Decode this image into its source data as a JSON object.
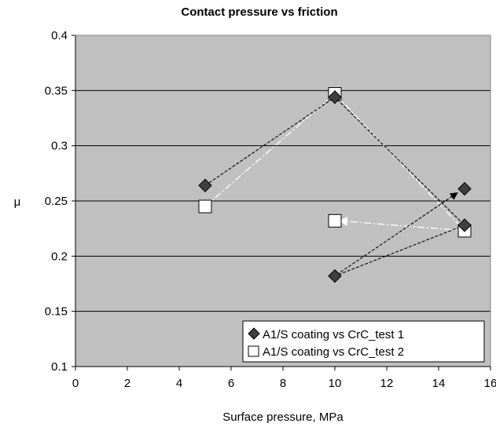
{
  "chart_data": {
    "type": "scatter",
    "title": "Contact pressure vs friction",
    "xlabel": "Surface pressure, MPa",
    "ylabel": "μ",
    "xlim": [
      0,
      16
    ],
    "ylim": [
      0.1,
      0.4
    ],
    "x_ticks": [
      "0",
      "2",
      "4",
      "6",
      "8",
      "10",
      "12",
      "14",
      "16"
    ],
    "y_ticks": [
      "0.1",
      "0.15",
      "0.2",
      "0.25",
      "0.3",
      "0.35",
      "0.4"
    ],
    "grid": true,
    "legend_position": "bottom-right",
    "background": "#c0c0c0",
    "series": [
      {
        "name": "A1/S coating vs CrC_test 1",
        "marker": "diamond",
        "color": "#404040",
        "line_color": "#000000",
        "points": [
          {
            "x": 5,
            "y": 0.264
          },
          {
            "x": 10,
            "y": 0.344
          },
          {
            "x": 15,
            "y": 0.228
          },
          {
            "x": 10,
            "y": 0.182
          },
          {
            "x": 15,
            "y": 0.261
          }
        ],
        "path": [
          [
            5,
            0.264
          ],
          [
            10,
            0.344
          ],
          [
            15,
            0.228
          ],
          [
            10,
            0.182
          ],
          [
            14.7,
            0.257
          ]
        ]
      },
      {
        "name": "A1/S coating vs CrC_test 2",
        "marker": "square",
        "color": "#ffffff",
        "line_color": "#ffffff",
        "points": [
          {
            "x": 5,
            "y": 0.245
          },
          {
            "x": 10,
            "y": 0.347
          },
          {
            "x": 15,
            "y": 0.223
          },
          {
            "x": 10,
            "y": 0.232
          }
        ],
        "path": [
          [
            5,
            0.245
          ],
          [
            10,
            0.347
          ],
          [
            15,
            0.223
          ],
          [
            10.2,
            0.232
          ]
        ]
      }
    ]
  }
}
